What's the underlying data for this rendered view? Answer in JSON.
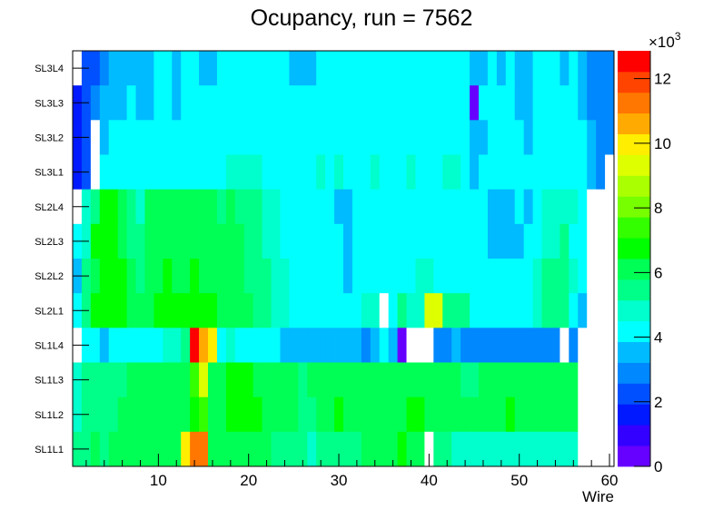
{
  "chart_data": {
    "type": "heatmap",
    "title": "Ocupancy, run = 7562",
    "xlabel": "Wire",
    "ylabel": "",
    "xlim": [
      0.5,
      60.5
    ],
    "x_ticks": [
      10,
      20,
      30,
      40,
      50,
      60
    ],
    "z_unit_label": "×10",
    "z_unit_exponent": "3",
    "z_units_note": "values in thousands",
    "zlim": [
      0,
      12.86
    ],
    "z_ticks": [
      0,
      2,
      4,
      6,
      8,
      10,
      12
    ],
    "palette": [
      "#6600ff",
      "#3300ff",
      "#0019ff",
      "#0050ff",
      "#0088ff",
      "#00bbff",
      "#00ffff",
      "#00ffcc",
      "#00ff88",
      "#00ff55",
      "#00ff00",
      "#33ff00",
      "#77ff00",
      "#aaff00",
      "#ddff00",
      "#ffee00",
      "#ffaa00",
      "#ff7700",
      "#ff4400",
      "#ff0000"
    ],
    "empty_color": "#ffffff",
    "rows": [
      {
        "label": "SL3L4",
        "values": [
          0,
          2.3,
          2.3,
          2.9,
          3.5,
          3.5,
          3.5,
          3.5,
          3.5,
          4.2,
          4.2,
          3.5,
          4.2,
          4.2,
          3.5,
          3.5,
          4.2,
          4.2,
          4.2,
          4.2,
          4.2,
          4.2,
          4.2,
          4.2,
          3.5,
          3.5,
          3.5,
          4.2,
          4.2,
          4.2,
          4.2,
          4.2,
          4.2,
          4.2,
          4.2,
          4.2,
          4.2,
          4.2,
          4.2,
          4.2,
          4.2,
          4.2,
          4.2,
          4.2,
          3.5,
          3.5,
          4.2,
          3.5,
          4.2,
          3.5,
          3.5,
          4.2,
          4.2,
          4.2,
          3.5,
          4.2,
          3.5,
          2.9,
          2.9,
          2.9
        ]
      },
      {
        "label": "SL3L3",
        "values": [
          1.6,
          2.3,
          2.9,
          3.5,
          3.5,
          3.5,
          4.2,
          3.5,
          3.5,
          4.2,
          4.2,
          3.5,
          4.2,
          4.2,
          4.2,
          4.2,
          4.2,
          4.2,
          4.2,
          4.2,
          4.2,
          4.2,
          4.2,
          4.2,
          4.2,
          4.2,
          4.2,
          4.2,
          4.2,
          4.2,
          4.2,
          4.2,
          4.2,
          4.2,
          4.2,
          4.2,
          4.2,
          4.2,
          4.2,
          4.2,
          4.2,
          4.2,
          4.2,
          4.2,
          0.3,
          4.2,
          4.2,
          4.2,
          4.2,
          3.5,
          3.5,
          4.2,
          4.2,
          4.2,
          4.2,
          4.2,
          3.5,
          2.9,
          2.9,
          2.9
        ]
      },
      {
        "label": "SL3L2",
        "values": [
          1.6,
          2.3,
          0,
          3.5,
          4.2,
          4.2,
          4.2,
          4.2,
          4.2,
          4.2,
          4.2,
          4.2,
          4.2,
          4.2,
          4.2,
          4.2,
          4.2,
          4.2,
          4.2,
          4.2,
          4.2,
          4.2,
          4.2,
          4.2,
          4.2,
          4.2,
          4.2,
          4.2,
          4.2,
          4.2,
          4.2,
          4.2,
          4.2,
          4.2,
          4.2,
          4.2,
          4.2,
          4.2,
          4.2,
          4.2,
          4.2,
          4.2,
          4.2,
          4.2,
          3.5,
          3.5,
          4.2,
          4.2,
          4.2,
          4.2,
          3.5,
          4.2,
          4.2,
          4.2,
          4.2,
          4.2,
          4.2,
          3.5,
          2.9,
          2.9
        ]
      },
      {
        "label": "SL3L1",
        "values": [
          1.6,
          2.3,
          0,
          4.2,
          4.2,
          4.2,
          4.2,
          4.2,
          4.2,
          4.2,
          4.2,
          4.2,
          4.2,
          4.2,
          4.2,
          4.2,
          4.2,
          4.8,
          4.8,
          4.8,
          4.8,
          4.2,
          4.2,
          4.2,
          4.2,
          4.2,
          4.2,
          4.8,
          4.2,
          4.8,
          4.2,
          4.2,
          4.2,
          4.8,
          4.2,
          4.2,
          4.2,
          4.8,
          4.2,
          4.2,
          4.2,
          4.8,
          4.8,
          4.2,
          3.5,
          4.2,
          4.2,
          4.2,
          4.2,
          4.2,
          4.2,
          4.2,
          4.2,
          4.2,
          4.2,
          4.2,
          4.2,
          3.5,
          2.9,
          0
        ]
      },
      {
        "label": "SL2L4",
        "values": [
          0,
          4.8,
          5.5,
          6.8,
          6.8,
          6.1,
          5.5,
          4.8,
          6.1,
          6.1,
          6.1,
          6.1,
          6.1,
          6.1,
          6.1,
          6.1,
          5.5,
          6.1,
          5.5,
          5.5,
          5.5,
          4.8,
          4.8,
          4.2,
          4.2,
          4.2,
          4.2,
          4.2,
          4.2,
          3.5,
          3.5,
          4.2,
          4.2,
          4.2,
          4.2,
          4.2,
          4.2,
          4.2,
          4.2,
          4.2,
          4.2,
          4.2,
          4.2,
          4.2,
          4.2,
          4.2,
          3.5,
          3.5,
          3.5,
          4.2,
          3.5,
          4.2,
          4.8,
          4.8,
          4.8,
          4.8,
          4.2,
          0,
          0,
          0
        ]
      },
      {
        "label": "SL2L3",
        "values": [
          4.2,
          4.8,
          6.8,
          6.8,
          6.8,
          6.1,
          5.5,
          5.5,
          6.1,
          6.1,
          6.1,
          6.1,
          6.1,
          6.1,
          6.1,
          6.1,
          6.1,
          6.1,
          6.1,
          5.5,
          5.5,
          4.8,
          4.8,
          4.2,
          4.2,
          4.2,
          4.2,
          4.2,
          4.2,
          4.2,
          3.5,
          4.2,
          4.2,
          4.2,
          4.2,
          4.2,
          4.2,
          4.2,
          4.2,
          4.2,
          4.2,
          4.2,
          4.2,
          4.2,
          4.2,
          4.2,
          3.5,
          3.5,
          3.5,
          3.5,
          4.2,
          4.2,
          4.8,
          4.8,
          5.5,
          4.2,
          4.2,
          0,
          0,
          0
        ]
      },
      {
        "label": "SL2L2",
        "values": [
          3.5,
          5.5,
          6.1,
          6.8,
          6.8,
          6.8,
          6.1,
          5.5,
          6.1,
          6.1,
          6.8,
          6.1,
          6.1,
          6.8,
          6.1,
          6.1,
          6.1,
          6.1,
          6.1,
          5.5,
          5.5,
          5.5,
          4.8,
          4.8,
          4.2,
          4.2,
          4.2,
          4.2,
          4.2,
          4.2,
          3.5,
          4.2,
          4.2,
          4.2,
          4.2,
          4.2,
          4.2,
          4.2,
          4.8,
          4.8,
          4.2,
          4.2,
          4.2,
          4.2,
          4.2,
          4.2,
          4.2,
          4.2,
          4.2,
          4.2,
          4.2,
          4.8,
          5.5,
          5.5,
          5.5,
          4.8,
          4.2,
          0,
          0,
          0
        ]
      },
      {
        "label": "SL2L1",
        "values": [
          4.2,
          5.5,
          6.8,
          6.8,
          6.8,
          6.8,
          6.1,
          6.1,
          6.1,
          6.8,
          6.8,
          6.8,
          6.8,
          6.8,
          6.8,
          6.8,
          6.1,
          6.1,
          6.1,
          6.1,
          5.5,
          5.5,
          4.8,
          4.8,
          4.2,
          4.2,
          4.2,
          4.2,
          4.2,
          4.2,
          4.2,
          4.2,
          4.8,
          4.8,
          0,
          4.2,
          5.5,
          4.8,
          4.8,
          9.3,
          9.3,
          5.5,
          5.5,
          5.5,
          4.2,
          4.2,
          4.2,
          4.2,
          4.2,
          4.2,
          4.2,
          4.8,
          5.5,
          5.5,
          5.5,
          4.2,
          3.5,
          0,
          0,
          0
        ]
      },
      {
        "label": "SL1L4",
        "values": [
          0,
          4.2,
          4.2,
          3.5,
          4.2,
          4.2,
          4.2,
          4.2,
          4.2,
          4.2,
          4.8,
          4.8,
          5.5,
          12.5,
          10.6,
          10.0,
          4.2,
          4.8,
          4.2,
          4.2,
          4.2,
          4.2,
          4.2,
          3.5,
          3.5,
          3.5,
          3.5,
          3.5,
          3.5,
          3.5,
          3.5,
          3.5,
          2.9,
          3.5,
          4.2,
          3.5,
          0.3,
          0,
          0,
          0,
          2.9,
          2.9,
          3.5,
          2.9,
          2.9,
          2.9,
          2.9,
          2.9,
          2.9,
          2.9,
          2.9,
          2.9,
          2.9,
          2.9,
          0,
          2.9,
          0,
          0,
          0,
          0
        ]
      },
      {
        "label": "SL1L3",
        "values": [
          4.8,
          5.5,
          5.5,
          5.5,
          5.5,
          5.5,
          6.1,
          6.1,
          6.1,
          6.1,
          6.1,
          6.1,
          6.1,
          7.4,
          9.3,
          6.1,
          6.1,
          6.8,
          6.8,
          6.8,
          6.1,
          6.1,
          6.1,
          6.1,
          6.1,
          5.5,
          6.1,
          6.1,
          6.1,
          6.1,
          6.1,
          6.1,
          6.1,
          6.1,
          6.1,
          6.1,
          6.1,
          6.1,
          6.1,
          6.1,
          6.1,
          6.1,
          6.1,
          5.5,
          5.5,
          6.1,
          6.1,
          6.1,
          6.1,
          6.1,
          6.1,
          6.1,
          6.1,
          6.1,
          6.1,
          6.1,
          0,
          0,
          0,
          0
        ]
      },
      {
        "label": "SL1L2",
        "values": [
          4.8,
          5.5,
          5.5,
          5.5,
          5.5,
          6.1,
          6.1,
          6.1,
          6.1,
          6.1,
          6.1,
          6.1,
          6.1,
          6.8,
          7.4,
          6.1,
          6.1,
          6.8,
          6.8,
          6.8,
          6.8,
          6.1,
          6.1,
          6.1,
          6.1,
          5.5,
          5.5,
          6.1,
          6.1,
          6.8,
          6.1,
          6.1,
          6.1,
          6.1,
          6.1,
          6.1,
          6.1,
          6.8,
          6.8,
          6.1,
          6.1,
          6.1,
          6.1,
          6.1,
          6.1,
          6.1,
          6.1,
          6.1,
          6.8,
          6.1,
          6.1,
          6.1,
          6.1,
          6.1,
          6.1,
          6.1,
          0,
          0,
          0,
          0
        ]
      },
      {
        "label": "SL1L1",
        "values": [
          5.5,
          5.5,
          6.1,
          5.5,
          6.1,
          6.1,
          6.1,
          6.1,
          6.1,
          6.1,
          6.1,
          6.1,
          10.0,
          11.3,
          11.3,
          6.1,
          6.1,
          6.1,
          6.1,
          6.1,
          6.1,
          6.1,
          5.5,
          5.5,
          5.5,
          5.5,
          4.8,
          5.5,
          5.5,
          5.5,
          5.5,
          5.5,
          6.1,
          6.1,
          6.1,
          6.1,
          6.8,
          6.1,
          6.1,
          0,
          5.5,
          5.5,
          4.8,
          4.8,
          4.8,
          4.8,
          4.8,
          4.8,
          4.8,
          4.8,
          4.8,
          4.8,
          4.8,
          4.8,
          4.8,
          4.8,
          0,
          0,
          0,
          0
        ]
      }
    ]
  }
}
